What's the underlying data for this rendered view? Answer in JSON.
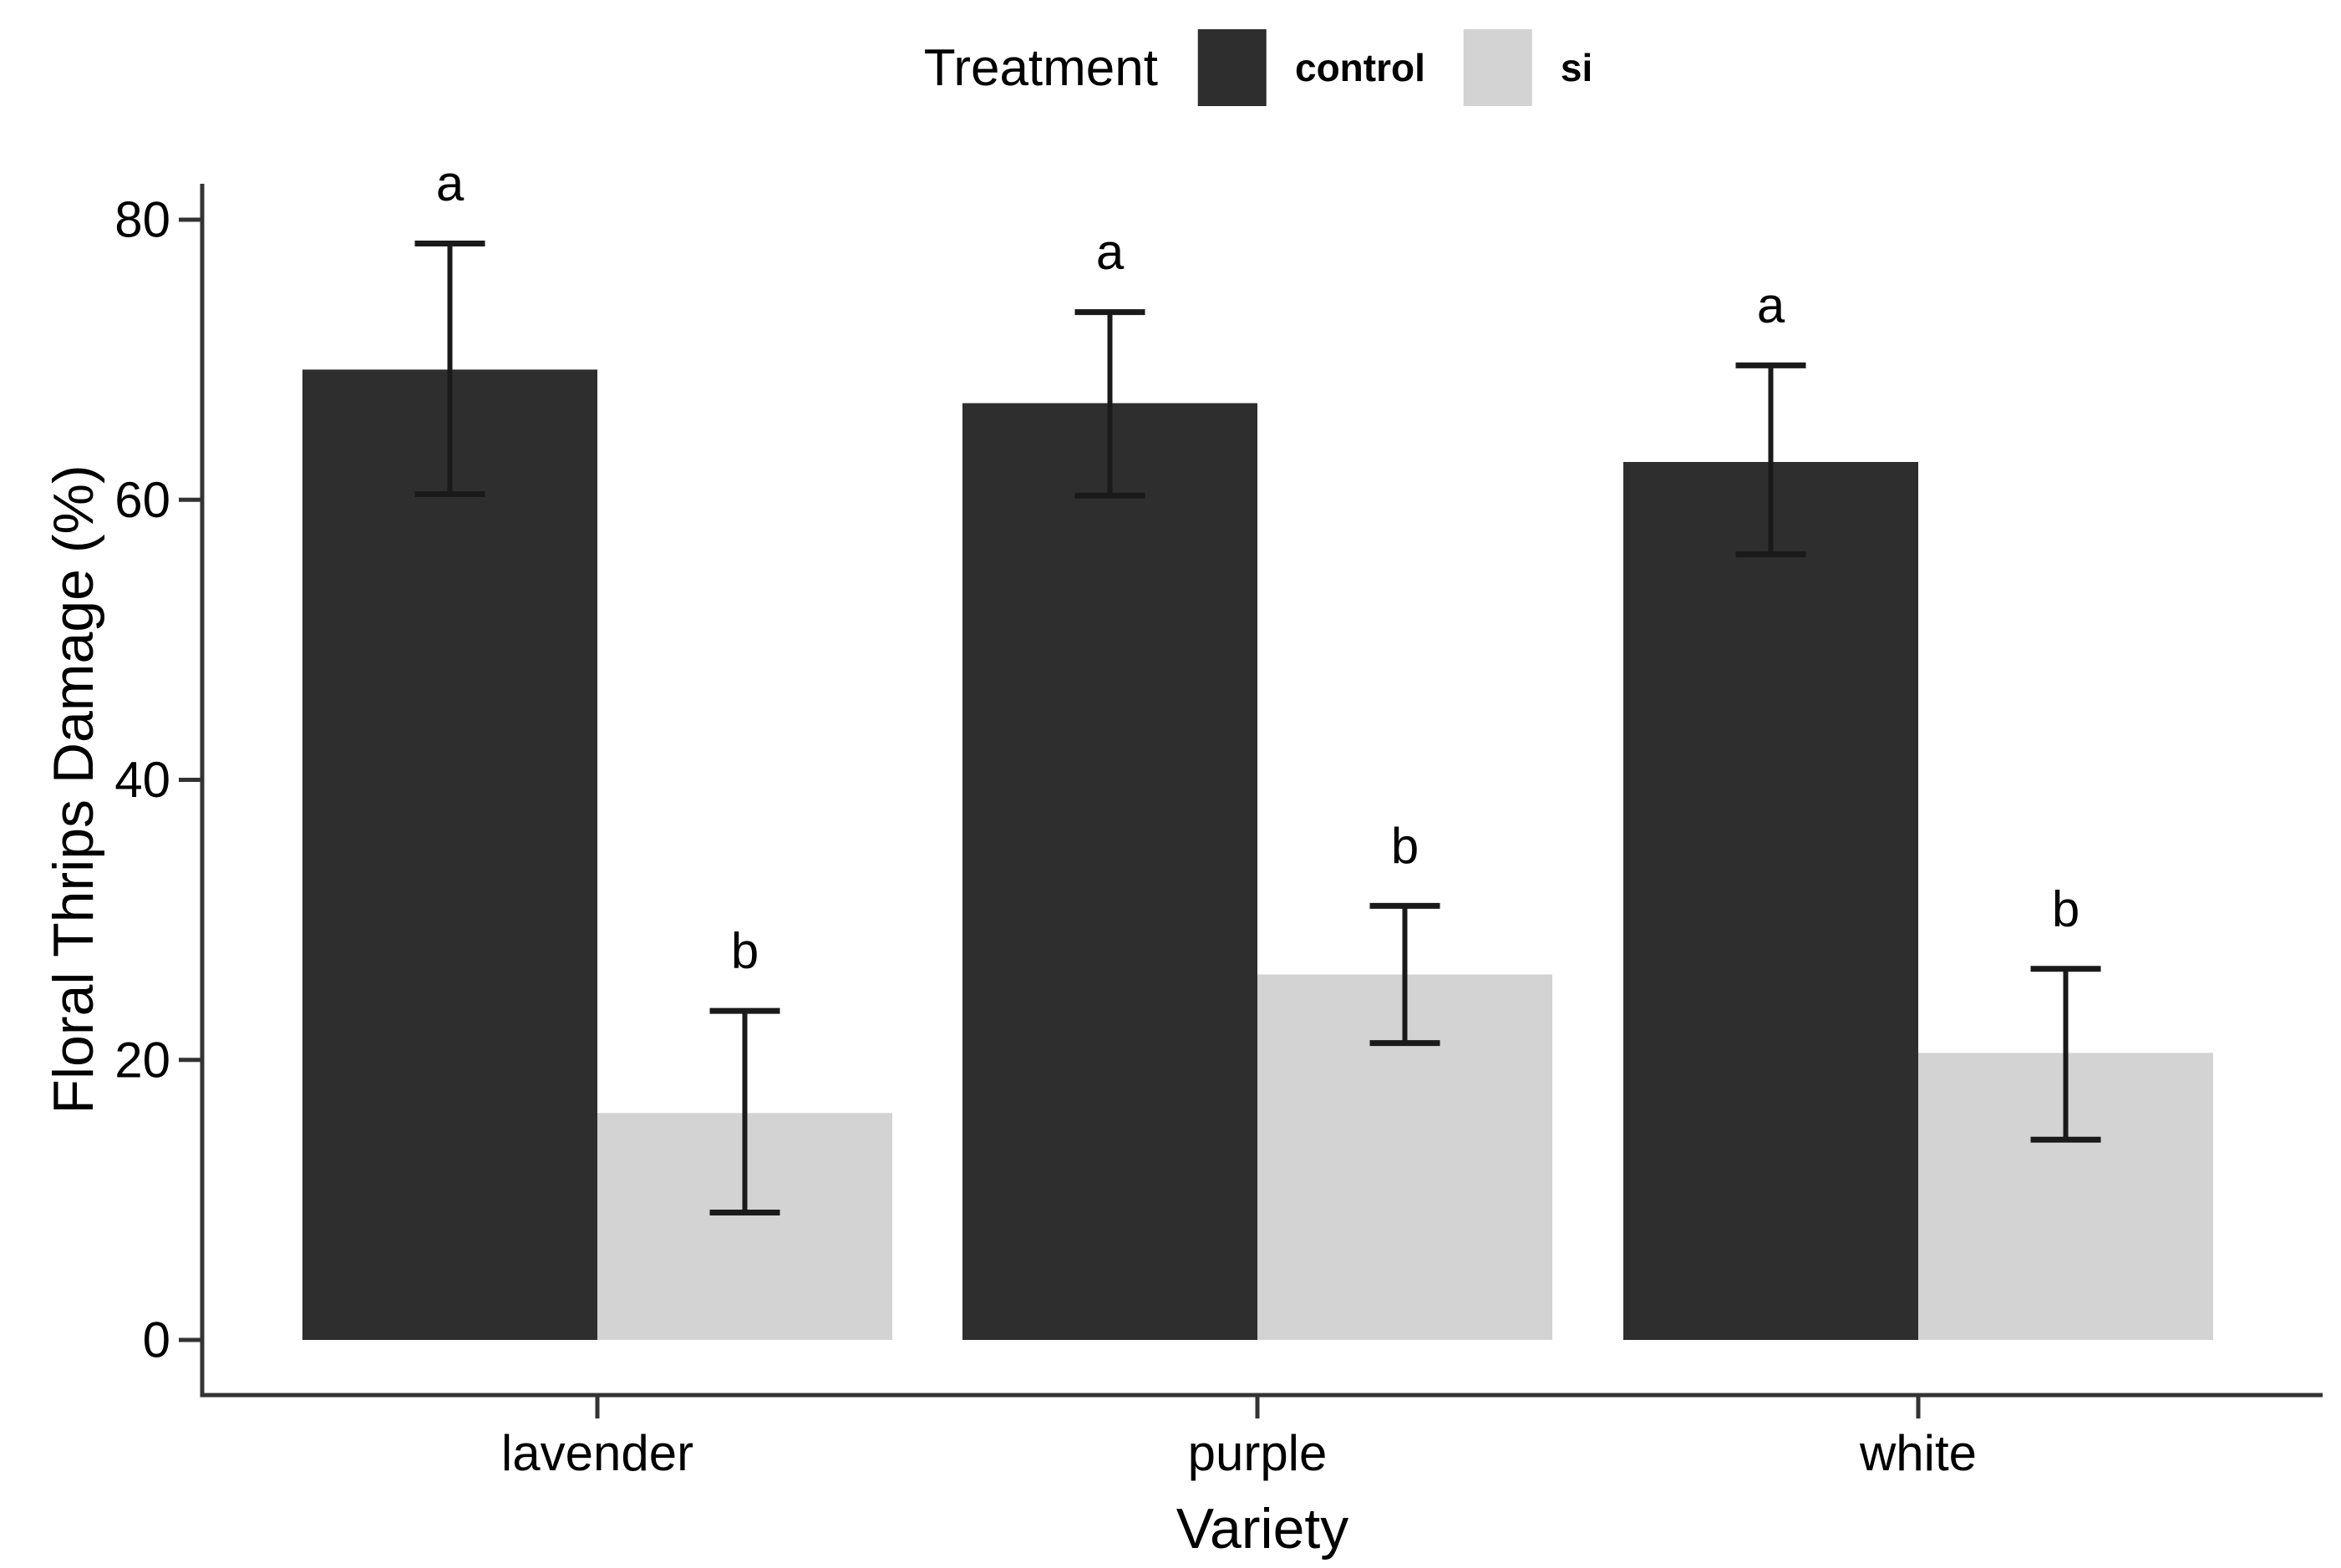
{
  "figure": {
    "background": "#ffffff"
  },
  "colors": {
    "axis": "#333333",
    "error_bar": "#1a1a1a",
    "text": "#000000"
  },
  "chart_data": {
    "type": "bar",
    "bar_style": "dodged",
    "title": "",
    "legend_title": "Treatment",
    "legend_position": "top-center",
    "xlabel": "Variety",
    "ylabel": "Floral Thrips Damage (%)",
    "categories": [
      "lavender",
      "purple",
      "white"
    ],
    "series": [
      {
        "name": "control",
        "color": "#2e2e2e",
        "values": [
          69.3,
          66.9,
          62.7
        ],
        "error_low": [
          60.4,
          60.3,
          56.1
        ],
        "error_high": [
          78.3,
          73.4,
          69.6
        ],
        "sig_letters": [
          "a",
          "a",
          "a"
        ]
      },
      {
        "name": "si",
        "color": "#d2d3d2",
        "values": [
          16.2,
          26.1,
          20.5
        ],
        "error_low": [
          9.1,
          21.2,
          14.3
        ],
        "error_high": [
          23.5,
          31.0,
          26.5
        ],
        "sig_letters": [
          "b",
          "b",
          "b"
        ]
      }
    ],
    "ylim": [
      0,
      80
    ],
    "y_ticks": [
      0,
      20,
      40,
      60,
      80
    ],
    "grid": false,
    "error_bars": true
  }
}
